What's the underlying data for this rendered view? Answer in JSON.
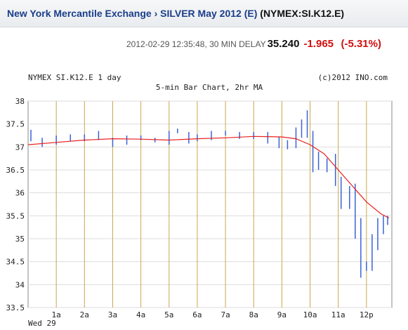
{
  "breadcrumb": {
    "exchange": "New York Mercantile Exchange",
    "separator": "›",
    "contract": "SILVER May 2012 (E)",
    "symbol": "(NYMEX:SI.K12.E)"
  },
  "quote": {
    "timestamp": "2012-02-29 12:35:48, 30 MIN DELAY",
    "last": "35.240",
    "change": "-1.965",
    "change_pct": "(-5.31%)"
  },
  "colors": {
    "bars": "#3a63d6",
    "ma": "#e82020",
    "vgrid": "#c9a84a",
    "hgrid": "#dddddd"
  },
  "chart_data": {
    "type": "bar",
    "header_left": "NYMEX SI.K12.E 1 day",
    "title": "5-min Bar Chart, 2hr MA",
    "copyright": "(c)2012 INO.com",
    "date_label": "Wed 29",
    "x_ticks": [
      "1a",
      "2a",
      "3a",
      "4a",
      "5a",
      "6a",
      "7a",
      "8a",
      "9a",
      "10a",
      "11a",
      "12p"
    ],
    "x_range_hours": [
      0,
      12.9
    ],
    "ylim": [
      33.5,
      38
    ],
    "y_ticks": [
      "38",
      "37.5",
      "37",
      "36.5",
      "36",
      "35.5",
      "35",
      "34.5",
      "34",
      "33.5"
    ],
    "series": [
      {
        "x": [
          0.1,
          0.5,
          1.0,
          1.5,
          2.0,
          2.5,
          3.0,
          3.5,
          4.0,
          4.5,
          5.0,
          5.3,
          5.7,
          6.0,
          6.5,
          7.0,
          7.5,
          8.0,
          8.5,
          8.9,
          9.2,
          9.5,
          9.7,
          9.9,
          10.1,
          10.3,
          10.6,
          10.9,
          11.1,
          11.4,
          11.6,
          11.8,
          12.0,
          12.2,
          12.4,
          12.6,
          12.75
        ],
        "values": [
          37.25,
          37.1,
          37.15,
          37.2,
          37.2,
          37.25,
          37.1,
          37.15,
          37.2,
          37.15,
          37.2,
          37.35,
          37.2,
          37.2,
          37.25,
          37.3,
          37.25,
          37.25,
          37.2,
          37.1,
          37.05,
          37.2,
          37.4,
          37.5,
          36.9,
          36.7,
          36.6,
          36.5,
          36.0,
          35.9,
          35.6,
          34.8,
          34.4,
          34.7,
          35.1,
          35.3,
          35.4
        ]
      },
      {
        "x": [
          0,
          1,
          2,
          3,
          4,
          5,
          6,
          7,
          8,
          9,
          9.5,
          10,
          10.5,
          11,
          11.5,
          12,
          12.5,
          12.8
        ],
        "values": [
          37.05,
          37.1,
          37.15,
          37.18,
          37.17,
          37.15,
          37.18,
          37.2,
          37.23,
          37.22,
          37.18,
          37.05,
          36.85,
          36.5,
          36.15,
          35.8,
          35.55,
          35.45
        ]
      }
    ]
  }
}
